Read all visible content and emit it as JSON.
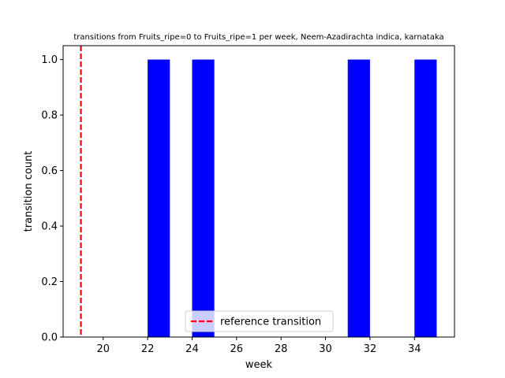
{
  "chart_data": {
    "type": "bar",
    "title": "transitions from Fruits_ripe=0 to Fruits_ripe=1 per week, Neem-Azadirachta indica, karnataka",
    "xlabel": "week",
    "ylabel": "transition count",
    "xlim": [
      18.2,
      35.8
    ],
    "ylim": [
      0,
      1.05
    ],
    "x_ticks": [
      20,
      22,
      24,
      26,
      28,
      30,
      32,
      34
    ],
    "y_ticks": [
      0.0,
      0.2,
      0.4,
      0.6,
      0.8,
      1.0
    ],
    "bar_width": 1,
    "bars": [
      {
        "x": 22,
        "value": 1
      },
      {
        "x": 24,
        "value": 1
      },
      {
        "x": 31,
        "value": 1
      },
      {
        "x": 34,
        "value": 1
      }
    ],
    "bar_color": "#0000ff",
    "reference_line": {
      "x": 19,
      "color": "#ff0000",
      "style": "dashed"
    },
    "legend": {
      "label": "reference transition",
      "placement": "lower center"
    },
    "grid": false
  }
}
